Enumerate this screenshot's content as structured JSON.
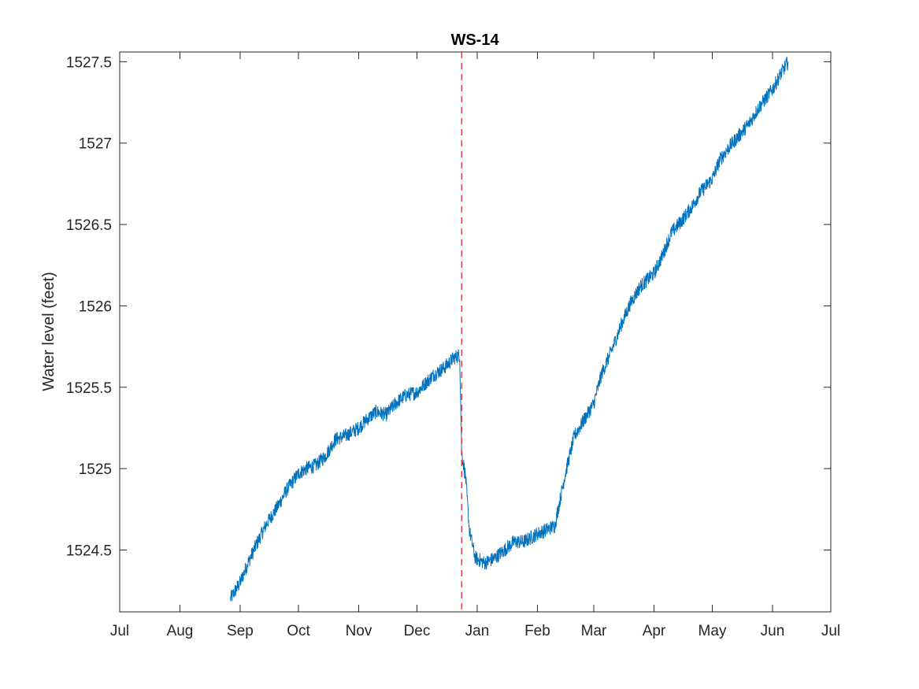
{
  "chart_data": {
    "type": "line",
    "title": "WS-14",
    "xlabel": "",
    "ylabel": "Water level (feet)",
    "x_tick_labels": [
      "Jul",
      "Aug",
      "Sep",
      "Oct",
      "Nov",
      "Dec",
      "Jan",
      "Feb",
      "Mar",
      "Apr",
      "May",
      "Jun",
      "Jul"
    ],
    "x_tick_dates": [
      "Jul 1",
      "Aug 1",
      "Sep 1",
      "Oct 1",
      "Nov 1",
      "Dec 1",
      "Jan 1",
      "Feb 1",
      "Mar 1",
      "Apr 1",
      "May 1",
      "Jun 1",
      "Jul 1"
    ],
    "y_ticks": [
      1524.5,
      1525,
      1525.5,
      1526,
      1526.5,
      1527,
      1527.5
    ],
    "y_tick_labels": [
      "1524.5",
      "1525",
      "1525.5",
      "1526",
      "1526.5",
      "1527",
      "1527.5"
    ],
    "ylim": [
      1524.12,
      1527.56
    ],
    "grid": false,
    "series": [
      {
        "color": "#0072BD",
        "x": [
          "Aug 27",
          "Sep 1",
          "Sep 5",
          "Sep 10",
          "Sep 15",
          "Sep 20",
          "Sep 25",
          "Oct 1",
          "Oct 5",
          "Oct 10",
          "Oct 15",
          "Oct 20",
          "Oct 25",
          "Nov 1",
          "Nov 5",
          "Nov 10",
          "Nov 15",
          "Nov 20",
          "Nov 25",
          "Dec 1",
          "Dec 5",
          "Dec 10",
          "Dec 15",
          "Dec 20",
          "Dec 23",
          "Dec 24",
          "Dec 26",
          "Dec 28",
          "Dec 31",
          "Jan 5",
          "Jan 10",
          "Jan 15",
          "Jan 20",
          "Jan 25",
          "Feb 1",
          "Feb 5",
          "Feb 10",
          "Feb 15",
          "Feb 20",
          "Feb 25",
          "Mar 1",
          "Mar 5",
          "Mar 10",
          "Mar 15",
          "Mar 20",
          "Mar 25",
          "Apr 1",
          "Apr 5",
          "Apr 10",
          "Apr 15",
          "Apr 20",
          "Apr 25",
          "May 1",
          "May 5",
          "May 10",
          "May 15",
          "May 20",
          "May 25",
          "Jun 1",
          "Jun 5",
          "Jun 9"
        ],
        "y": [
          1524.2,
          1524.3,
          1524.42,
          1524.55,
          1524.67,
          1524.76,
          1524.87,
          1524.97,
          1525.0,
          1525.02,
          1525.08,
          1525.18,
          1525.2,
          1525.25,
          1525.3,
          1525.35,
          1525.33,
          1525.4,
          1525.45,
          1525.47,
          1525.52,
          1525.58,
          1525.62,
          1525.68,
          1525.7,
          1525.1,
          1524.95,
          1524.62,
          1524.45,
          1524.42,
          1524.45,
          1524.5,
          1524.55,
          1524.55,
          1524.6,
          1524.62,
          1524.65,
          1524.95,
          1525.2,
          1525.3,
          1525.4,
          1525.58,
          1525.72,
          1525.88,
          1526.02,
          1526.12,
          1526.2,
          1526.3,
          1526.45,
          1526.52,
          1526.6,
          1526.7,
          1526.78,
          1526.9,
          1526.98,
          1527.05,
          1527.12,
          1527.22,
          1527.33,
          1527.42,
          1527.5
        ]
      },
      {
        "name": "",
        "color": "#E4292E",
        "style": "dashed",
        "x": [
          "Dec 24",
          "Dec 24"
        ],
        "y": [
          1524.12,
          1527.56
        ]
      }
    ],
    "legend": "none"
  }
}
